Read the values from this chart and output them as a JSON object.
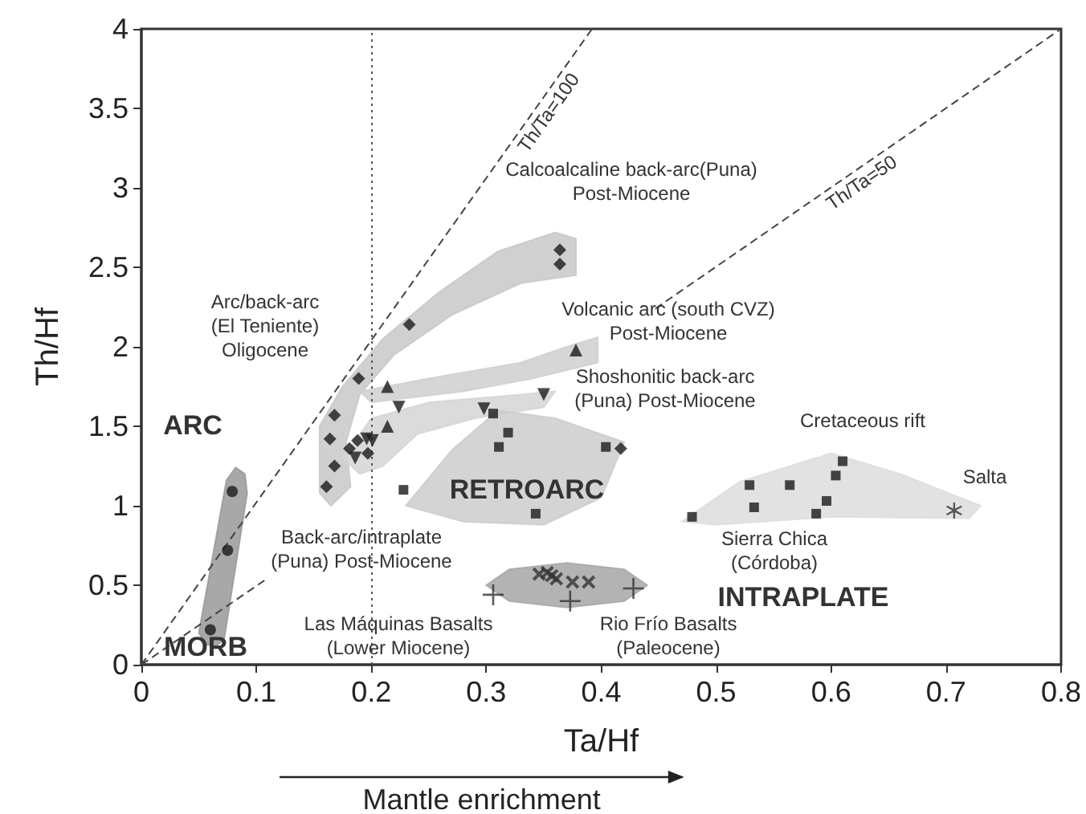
{
  "chart_data": {
    "type": "scatter",
    "xlabel": "Ta/Hf",
    "ylabel": "Th/Hf",
    "xlim": [
      0,
      0.8
    ],
    "xticks": [
      0,
      0.1,
      0.2,
      0.3,
      0.4,
      0.5,
      0.6,
      0.7,
      0.8
    ],
    "ylim": [
      0,
      4
    ],
    "yticks": [
      0,
      0.5,
      1,
      1.5,
      2,
      2.5,
      3,
      3.5,
      4
    ],
    "grid": false,
    "ref_lines": [
      {
        "axis": "x",
        "value": 0.2,
        "line_style": "dotted",
        "color": "#555555"
      }
    ],
    "series": [
      {
        "type": "area",
        "color": "#999999",
        "x": [
          0.05,
          0.056,
          0.064,
          0.072,
          0.092,
          0.09,
          0.082,
          0.074
        ],
        "values": [
          0.2,
          0.13,
          0.11,
          0.16,
          1.08,
          1.2,
          1.24,
          1.16
        ]
      },
      {
        "type": "area",
        "color": "#c8c8c8",
        "x": [
          0.155,
          0.175,
          0.21,
          0.26,
          0.31,
          0.36,
          0.378,
          0.378,
          0.33,
          0.27,
          0.22,
          0.19,
          0.178,
          0.182,
          0.165,
          0.155
        ],
        "values": [
          1.5,
          1.75,
          2.05,
          2.35,
          2.6,
          2.72,
          2.68,
          2.45,
          2.4,
          2.2,
          1.95,
          1.7,
          1.4,
          1.12,
          1.0,
          1.08
        ]
      },
      {
        "type": "area",
        "color": "#cfcfcf",
        "x": [
          0.19,
          0.25,
          0.33,
          0.37,
          0.397,
          0.397,
          0.34,
          0.28,
          0.2
        ],
        "values": [
          1.72,
          1.8,
          1.9,
          2.0,
          2.06,
          1.9,
          1.8,
          1.72,
          1.65
        ]
      },
      {
        "type": "area",
        "color": "#d5d5d5",
        "x": [
          0.175,
          0.2,
          0.25,
          0.33,
          0.36,
          0.35,
          0.29,
          0.24,
          0.21,
          0.19
        ],
        "values": [
          1.3,
          1.55,
          1.65,
          1.7,
          1.72,
          1.62,
          1.55,
          1.45,
          1.25,
          1.2
        ]
      },
      {
        "type": "area",
        "color": "#cccccc",
        "x": [
          0.23,
          0.27,
          0.31,
          0.36,
          0.42,
          0.4,
          0.35,
          0.28
        ],
        "values": [
          1.0,
          1.35,
          1.6,
          1.55,
          1.4,
          1.05,
          0.88,
          0.9
        ]
      },
      {
        "type": "area",
        "color": "#a6a6a6",
        "x": [
          0.3,
          0.32,
          0.37,
          0.42,
          0.44,
          0.42,
          0.37,
          0.32
        ],
        "values": [
          0.5,
          0.6,
          0.64,
          0.6,
          0.5,
          0.4,
          0.36,
          0.4
        ]
      },
      {
        "type": "area",
        "color": "#dddddd",
        "x": [
          0.47,
          0.52,
          0.6,
          0.66,
          0.73,
          0.72,
          0.6,
          0.5
        ],
        "values": [
          0.9,
          1.15,
          1.33,
          1.2,
          1.0,
          0.92,
          0.93,
          0.88
        ]
      },
      {
        "type": "line",
        "line_style": "dashed",
        "color": "#444444",
        "x": [
          0,
          0.392
        ],
        "values": [
          0,
          4
        ]
      },
      {
        "type": "line",
        "line_style": "dashed",
        "color": "#444444",
        "x": [
          0,
          0.107,
          0.3,
          0.447,
          0.8
        ],
        "values": [
          0,
          0.53,
          null,
          2.24,
          4
        ]
      },
      {
        "marker": "circle",
        "color": "#1a1a1a",
        "x": [
          0.079,
          0.075,
          0.06
        ],
        "values": [
          1.09,
          0.72,
          0.22
        ]
      },
      {
        "marker": "diamond",
        "color": "#1a1a1a",
        "x": [
          0.364,
          0.364,
          0.233,
          0.189,
          0.168,
          0.164,
          0.168,
          0.161,
          0.181,
          0.188,
          0.197,
          0.417
        ],
        "values": [
          2.61,
          2.52,
          2.14,
          1.8,
          1.57,
          1.42,
          1.25,
          1.12,
          1.36,
          1.41,
          1.33,
          1.36
        ]
      },
      {
        "marker": "triangle",
        "color": "#1a1a1a",
        "x": [
          0.378,
          0.214,
          0.214
        ],
        "values": [
          1.98,
          1.75,
          1.5
        ]
      },
      {
        "marker": "triangle-down",
        "color": "#1a1a1a",
        "x": [
          0.224,
          0.196,
          0.201,
          0.186,
          0.298,
          0.35
        ],
        "values": [
          1.62,
          1.42,
          1.41,
          1.3,
          1.61,
          1.7
        ]
      },
      {
        "marker": "square",
        "color": "#1a1a1a",
        "x": [
          0.306,
          0.319,
          0.311,
          0.404,
          0.228,
          0.343,
          0.604
        ],
        "values": [
          1.58,
          1.46,
          1.37,
          1.37,
          1.1,
          0.95,
          1.19
        ]
      },
      {
        "marker": "x",
        "color": "#333333",
        "x": [
          0.346,
          0.353,
          0.357,
          0.361,
          0.375,
          0.389
        ],
        "values": [
          0.57,
          0.58,
          0.56,
          0.54,
          0.52,
          0.52
        ]
      },
      {
        "marker": "plus",
        "color": "#333333",
        "x": [
          0.306,
          0.373,
          0.428
        ],
        "values": [
          0.44,
          0.4,
          0.48
        ]
      },
      {
        "marker": "square",
        "color": "#1a1a1a",
        "x": [
          0.479,
          0.529,
          0.533,
          0.564,
          0.587,
          0.596,
          0.61
        ],
        "values": [
          0.93,
          1.13,
          0.99,
          1.13,
          0.95,
          1.03,
          1.28
        ]
      },
      {
        "marker": "star",
        "color": "#333333",
        "x": [
          0.707
        ],
        "values": [
          0.97
        ]
      }
    ],
    "annotations": [
      {
        "text": "Th/Ta=100",
        "x": 0.345,
        "y": 3.52
      },
      {
        "text": "Th/Ta=50",
        "x": 0.62,
        "y": 3.1
      },
      "Calcoalcaline back-arc(Puna)\nPost-Miocene",
      "Volcanic arc (south CVZ)\nPost-Miocene",
      "Shoshonitic back-arc\n(Puna) Post-Miocene",
      "Arc/back-arc\n(El Teniente)\nOligocene",
      "ARC",
      "MORB",
      "RETROARC",
      "Back-arc/intraplate\n(Puna) Post-Miocene",
      "Las Máquinas Basalts\n(Lower Miocene)",
      "Rio Frío Basalts\n(Paleocene)",
      "Cretaceous rift",
      "Sierra Chica\n(Córdoba)",
      "Salta",
      "INTRAPLATE",
      "Mantle enrichment"
    ]
  }
}
